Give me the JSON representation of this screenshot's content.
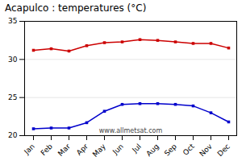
{
  "chart_data": {
    "type": "line",
    "title": "Acapulco : temperatures (°C)",
    "categories": [
      "Jan",
      "Feb",
      "Mar",
      "Apr",
      "May",
      "Jun",
      "Jul",
      "Aug",
      "Sep",
      "Oct",
      "Nov",
      "Dec"
    ],
    "series": [
      {
        "color": "#cc0000",
        "values": [
          31.2,
          31.4,
          31.1,
          31.8,
          32.2,
          32.3,
          32.6,
          32.5,
          32.3,
          32.1,
          32.1,
          31.5
        ]
      },
      {
        "color": "#0000cc",
        "values": [
          20.9,
          21.0,
          21.0,
          21.7,
          23.2,
          24.1,
          24.2,
          24.2,
          24.1,
          23.9,
          23.0,
          21.8
        ]
      }
    ],
    "marker": "square",
    "ylim": [
      20,
      35
    ],
    "yticks": [
      20,
      25,
      30,
      35
    ],
    "grid": true,
    "annotations": [
      "www.allmetsat.com"
    ]
  }
}
